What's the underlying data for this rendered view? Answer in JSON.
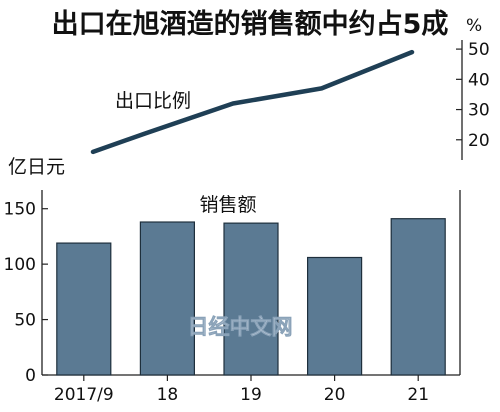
{
  "title": "出口在旭酒造的销售额中约占5成",
  "chart_data": [
    {
      "type": "line",
      "series": [
        {
          "name": "出口比例",
          "values": [
            16,
            22,
            32,
            37,
            49
          ]
        }
      ],
      "x": [
        "2017/9",
        "18",
        "19",
        "20",
        "21"
      ],
      "ylabel": "%",
      "yticks": [
        20,
        30,
        40,
        50
      ],
      "ylim": [
        10,
        55
      ],
      "line_color": "#1f3f55"
    },
    {
      "type": "bar",
      "series": [
        {
          "name": "销售额",
          "values": [
            119,
            138,
            137,
            106,
            141
          ]
        }
      ],
      "categories": [
        "2017/9",
        "18",
        "19",
        "20",
        "21"
      ],
      "ylabel": "亿日元",
      "yticks": [
        0,
        50,
        100,
        150
      ],
      "ylim": [
        0,
        175
      ],
      "bar_color": "#5b7a93"
    }
  ],
  "watermark": "日经中文网"
}
